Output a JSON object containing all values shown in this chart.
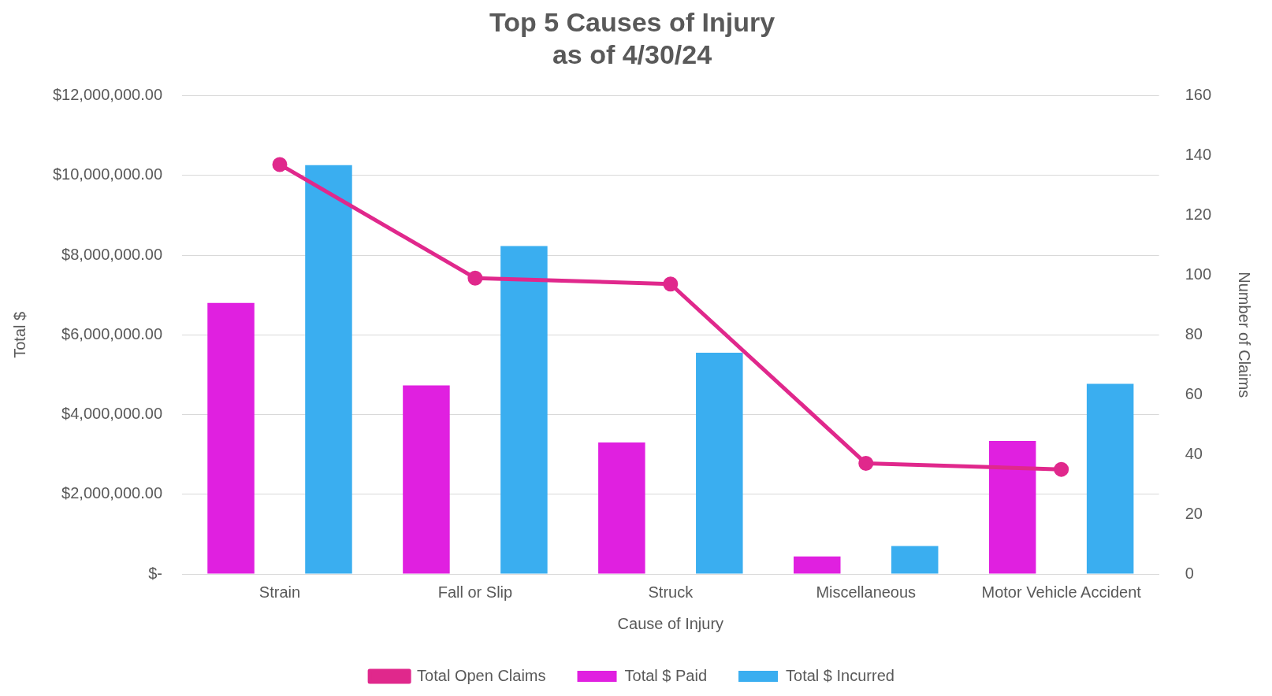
{
  "chart_data": {
    "type": "bar",
    "title": "Top 5 Causes of Injury",
    "subtitle": "as of 4/30/24",
    "xlabel": "Cause of Injury",
    "ylabel": "Total $",
    "y2label": "Number of Claims",
    "categories": [
      "Strain",
      "Fall or Slip",
      "Struck",
      "Miscellaneous",
      "Motor Vehicle Accident"
    ],
    "series": [
      {
        "name": "Total $ Paid",
        "color": "#e020e0",
        "values": [
          6800000,
          4730000,
          3300000,
          440000,
          3340000
        ]
      },
      {
        "name": "Total $ Incurred",
        "color": "#3aaef0",
        "values": [
          10260000,
          8230000,
          5550000,
          700000,
          4770000
        ]
      },
      {
        "name": "Total Open Claims",
        "type": "line",
        "axis": "y2",
        "color": "#e0288c",
        "values": [
          137,
          99,
          97,
          37,
          35
        ]
      }
    ],
    "ylim": [
      0,
      12000000
    ],
    "yticks": [
      {
        "value": 0,
        "label": "$-"
      },
      {
        "value": 2000000,
        "label": "$2,000,000.00"
      },
      {
        "value": 4000000,
        "label": "$4,000,000.00"
      },
      {
        "value": 6000000,
        "label": "$6,000,000.00"
      },
      {
        "value": 8000000,
        "label": "$8,000,000.00"
      },
      {
        "value": 10000000,
        "label": "$10,000,000.00"
      },
      {
        "value": 12000000,
        "label": "$12,000,000.00"
      }
    ],
    "y2lim": [
      0,
      160
    ],
    "y2ticks": [
      0,
      20,
      40,
      60,
      80,
      100,
      120,
      140,
      160
    ],
    "grid": "y",
    "legend": "bottom",
    "marker": "circle"
  }
}
